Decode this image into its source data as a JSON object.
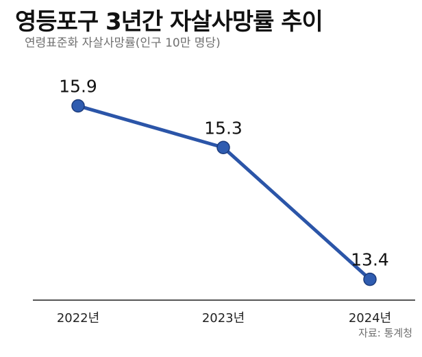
{
  "title": "영등포구 3년간 자살사망률 추이",
  "subtitle": "연령표준화 자살사망률(인구 10만 명당)",
  "source": "자료: 통계청",
  "colors": {
    "line": "#2b55a8",
    "point_fill": "#2f5cb0",
    "point_stroke": "#1b3a7a",
    "axis": "#555555"
  },
  "chart_data": {
    "type": "line",
    "categories": [
      "2022년",
      "2023년",
      "2024년"
    ],
    "series": [
      {
        "values": [
          15.9,
          15.3,
          13.4
        ]
      }
    ],
    "data_labels": [
      "15.9",
      "15.3",
      "13.4"
    ],
    "ylim": [
      13.1,
      16.3
    ],
    "grid": false,
    "legend": "none"
  }
}
